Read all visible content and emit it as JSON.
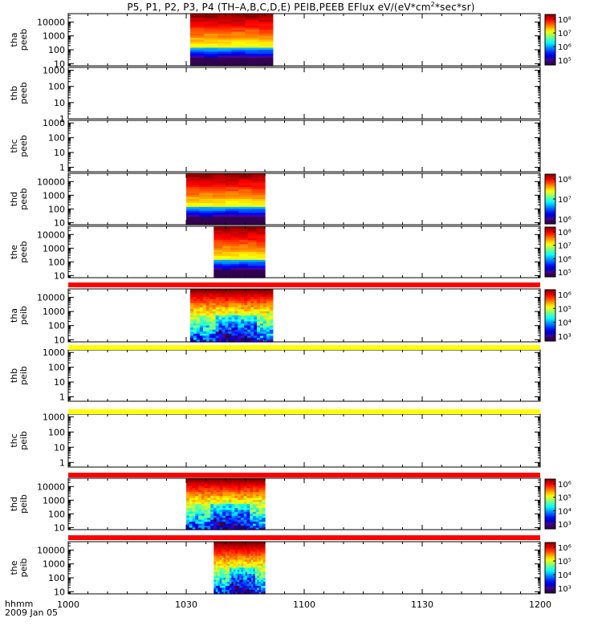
{
  "title": {
    "prefix": "P5, P1, P2, P3, P4 (TH–A,B,C,D,E) PEIB,PEEB EFlux eV/(eV*cm",
    "sup": "2",
    "suffix": "*sec*sr)"
  },
  "x_axis": {
    "unit_label": "hhmm",
    "date_label": "2009 Jan 05",
    "ticks": [
      "1000",
      "1030",
      "1100",
      "1130",
      "1200"
    ]
  },
  "colors": {
    "status_red": "#ff0000",
    "status_yellow": "#ffff00",
    "axis": "#000000"
  },
  "chart_data": [
    {
      "type": "heatmap",
      "ylabel": "tha\npeeb",
      "yscale": "log",
      "ylim": [
        7,
        40000
      ],
      "yticks": [
        "10",
        "100",
        "1000",
        "10000"
      ],
      "data_span": [
        "1031",
        "1052"
      ],
      "colorbar": {
        "ticks": [
          "10⁵",
          "10⁶",
          "10⁷",
          "10⁸"
        ]
      }
    },
    {
      "type": "heatmap",
      "ylabel": "thb\npeeb",
      "yscale": "log",
      "ylim": [
        1,
        1500
      ],
      "yticks": [
        "1",
        "10",
        "100",
        "1000"
      ],
      "data_span": null
    },
    {
      "type": "heatmap",
      "ylabel": "thc\npeeb",
      "yscale": "log",
      "ylim": [
        0.5,
        1500
      ],
      "yticks": [
        "1",
        "10",
        "100",
        "1000"
      ],
      "data_span": null
    },
    {
      "type": "heatmap",
      "ylabel": "thd\npeeb",
      "yscale": "log",
      "ylim": [
        7,
        40000
      ],
      "yticks": [
        "10",
        "100",
        "1000",
        "10000"
      ],
      "data_span": [
        "1030",
        "1050"
      ],
      "colorbar": {
        "ticks": [
          "10⁶",
          "10⁷",
          "10⁸"
        ]
      }
    },
    {
      "type": "heatmap",
      "ylabel": "the\npeeb",
      "yscale": "log",
      "ylim": [
        7,
        40000
      ],
      "yticks": [
        "10",
        "100",
        "1000",
        "10000"
      ],
      "data_span": [
        "1037",
        "1050"
      ],
      "colorbar": {
        "ticks": [
          "10⁵",
          "10⁶",
          "10⁷",
          "10⁸"
        ]
      }
    },
    {
      "type": "heatmap",
      "ylabel": "tha\npeib",
      "yscale": "log",
      "ylim": [
        7,
        40000
      ],
      "yticks": [
        "10",
        "100",
        "1000",
        "10000"
      ],
      "data_span": [
        "1031",
        "1052"
      ],
      "colorbar": {
        "ticks": [
          "10³",
          "10⁴",
          "10⁵",
          "10⁶"
        ]
      }
    },
    {
      "type": "heatmap",
      "ylabel": "thb\npeib",
      "yscale": "log",
      "ylim": [
        0.5,
        1500
      ],
      "yticks": [
        "1",
        "10",
        "100",
        "1000"
      ],
      "data_span": null
    },
    {
      "type": "heatmap",
      "ylabel": "thc\npeib",
      "yscale": "log",
      "ylim": [
        0.5,
        1500
      ],
      "yticks": [
        "1",
        "10",
        "100",
        "1000"
      ],
      "data_span": null
    },
    {
      "type": "heatmap",
      "ylabel": "thd\npeib",
      "yscale": "log",
      "ylim": [
        7,
        40000
      ],
      "yticks": [
        "10",
        "100",
        "1000",
        "10000"
      ],
      "data_span": [
        "1030",
        "1050"
      ],
      "colorbar": {
        "ticks": [
          "10³",
          "10⁴",
          "10⁵",
          "10⁶"
        ]
      }
    },
    {
      "type": "heatmap",
      "ylabel": "the\npeib",
      "yscale": "log",
      "ylim": [
        7,
        40000
      ],
      "yticks": [
        "10",
        "100",
        "1000",
        "10000"
      ],
      "data_span": [
        "1037",
        "1050"
      ],
      "colorbar": {
        "ticks": [
          "10³",
          "10⁴",
          "10⁵",
          "10⁶"
        ]
      }
    }
  ],
  "status_bars": [
    {
      "after_panel": 4,
      "color": "red"
    },
    {
      "after_panel": 5,
      "color": "yellow"
    },
    {
      "after_panel": 6,
      "color": "yellow"
    },
    {
      "after_panel": 7,
      "color": "red"
    },
    {
      "after_panel": 8,
      "color": "red"
    }
  ]
}
